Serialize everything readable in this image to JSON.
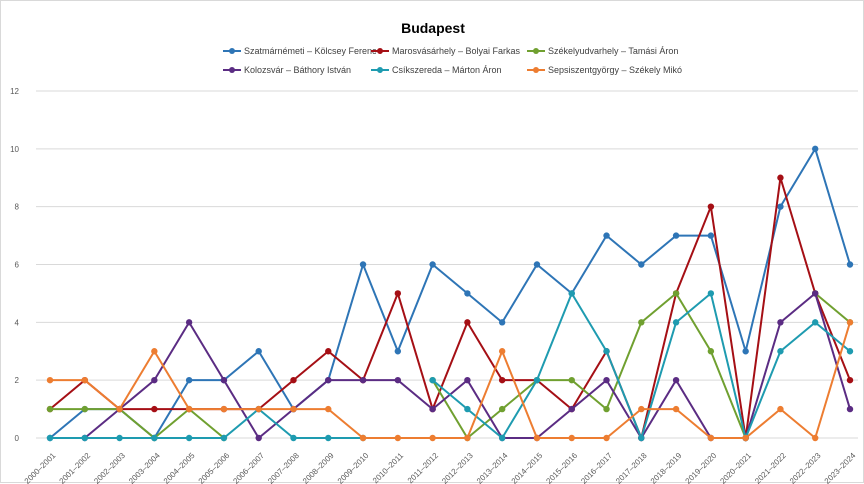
{
  "chart_data": {
    "type": "line",
    "title": "Budapest",
    "xlabel": "",
    "ylabel": "",
    "ylim": [
      0,
      12
    ],
    "yticks": [
      0,
      2,
      4,
      6,
      8,
      10,
      12
    ],
    "grid": true,
    "legend_position": "top",
    "categories": [
      "2000–2001",
      "2001–2002",
      "2002–2003",
      "2003–2004",
      "2004–2005",
      "2005–2006",
      "2006–2007",
      "2007–2008",
      "2008–2009",
      "2009–2010",
      "2010–2011",
      "2011–2012",
      "2012–2013",
      "2013–2014",
      "2014–2015",
      "2015–2016",
      "2016–2017",
      "2017–2018",
      "2018–2019",
      "2019–2020",
      "2020–2021",
      "2021–2022",
      "2022–2023",
      "2023–2024"
    ],
    "series": [
      {
        "name": "Szatmárnémeti – Kölcsey Ferenc",
        "color": "#2e75b6",
        "values": [
          0,
          1,
          1,
          0,
          2,
          2,
          3,
          1,
          2,
          6,
          3,
          6,
          5,
          4,
          6,
          5,
          7,
          6,
          7,
          7,
          3,
          8,
          10,
          6
        ]
      },
      {
        "name": "Marosvásárhely – Bolyai Farkas",
        "color": "#a50f15",
        "values": [
          1,
          2,
          1,
          1,
          1,
          1,
          1,
          2,
          3,
          2,
          5,
          1,
          4,
          2,
          2,
          1,
          3,
          0,
          5,
          8,
          0,
          9,
          5,
          2
        ]
      },
      {
        "name": "Székelyudvarhely – Tamási Áron",
        "color": "#70a030",
        "values": [
          1,
          1,
          1,
          0,
          1,
          0,
          null,
          null,
          null,
          null,
          null,
          2,
          0,
          1,
          2,
          2,
          1,
          4,
          5,
          3,
          0,
          null,
          5,
          4
        ]
      },
      {
        "name": "Kolozsvár – Báthory István",
        "color": "#5b2c83",
        "values": [
          null,
          0,
          1,
          2,
          4,
          2,
          0,
          1,
          2,
          2,
          2,
          1,
          2,
          0,
          0,
          1,
          2,
          0,
          2,
          0,
          0,
          4,
          5,
          1
        ]
      },
      {
        "name": "Csíkszereda – Márton Áron",
        "color": "#1e9bb0",
        "values": [
          0,
          0,
          0,
          0,
          0,
          0,
          1,
          0,
          0,
          0,
          null,
          2,
          1,
          0,
          2,
          5,
          3,
          0,
          4,
          5,
          0,
          3,
          4,
          3
        ]
      },
      {
        "name": "Sepsiszentgyörgy – Székely Mikó",
        "color": "#ed7d31",
        "values": [
          2,
          2,
          1,
          3,
          1,
          1,
          1,
          1,
          1,
          0,
          0,
          0,
          0,
          3,
          0,
          0,
          0,
          1,
          1,
          0,
          0,
          1,
          0,
          4
        ]
      }
    ]
  }
}
